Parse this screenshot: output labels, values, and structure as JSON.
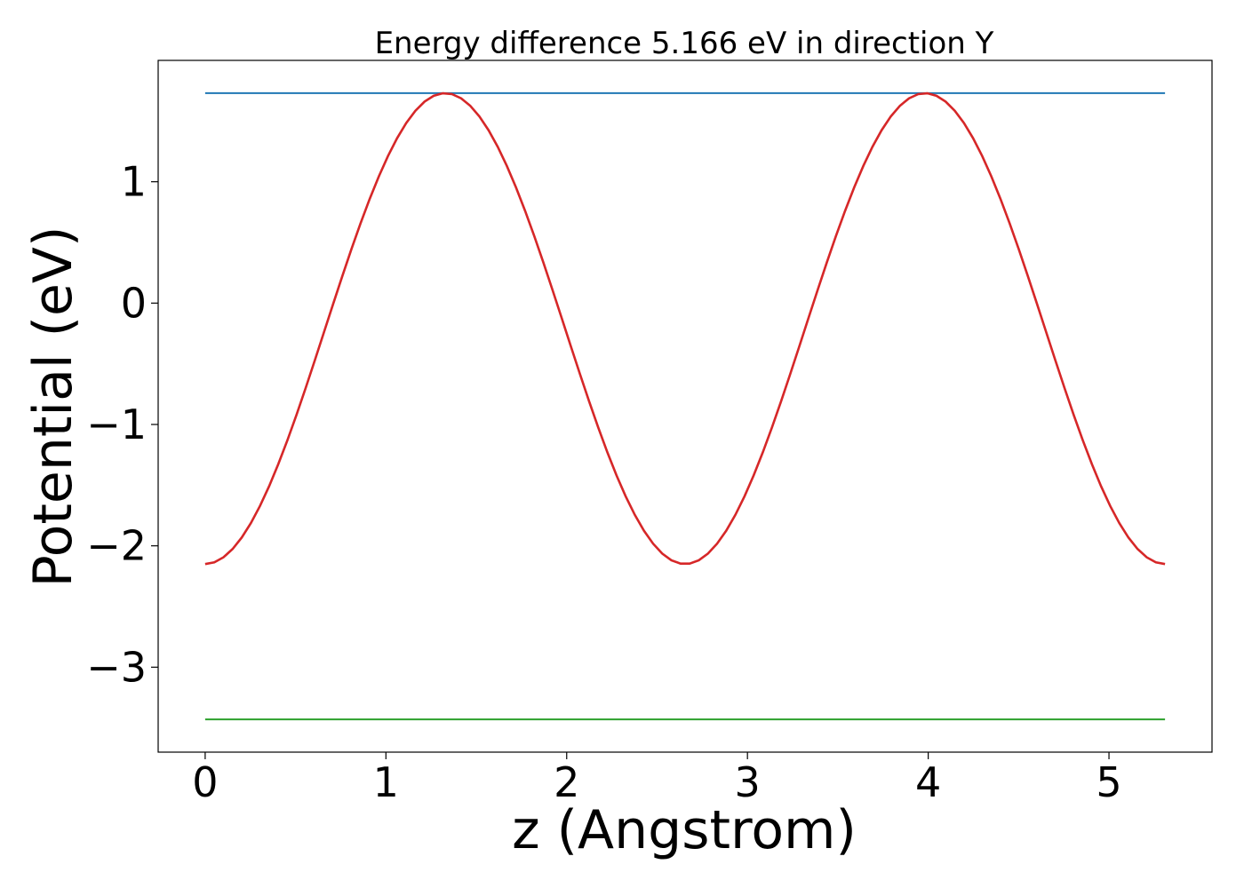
{
  "chart_data": {
    "type": "line",
    "title": "Energy difference 5.166 eV in direction Y",
    "xlabel": "z (Angstrom)",
    "ylabel": "Potential (eV)",
    "xlim": [
      -0.26,
      5.57
    ],
    "ylim": [
      -3.7,
      2.0
    ],
    "xticks": [
      0,
      1,
      2,
      3,
      4,
      5
    ],
    "xtick_labels": [
      "0",
      "1",
      "2",
      "3",
      "4",
      "5"
    ],
    "yticks": [
      -3,
      -2,
      -1,
      0,
      1
    ],
    "ytick_labels": [
      "−3",
      "−2",
      "−1",
      "0",
      "1"
    ],
    "grid": false,
    "series": [
      {
        "color": "#1f77b4",
        "style": "horizontal-line",
        "x": [
          0,
          5.31
        ],
        "y": [
          1.73,
          1.73
        ]
      },
      {
        "color": "#d62728",
        "style": "cosine",
        "x_start": 0,
        "x_end": 5.31,
        "mean": -0.21,
        "amplitude": 1.94,
        "period": 2.655,
        "first_maximum_x": 1.3275,
        "points": 105
      },
      {
        "color": "#2ca02c",
        "style": "horizontal-line",
        "x": [
          0,
          5.31
        ],
        "y": [
          -3.43,
          -3.43
        ]
      }
    ]
  }
}
